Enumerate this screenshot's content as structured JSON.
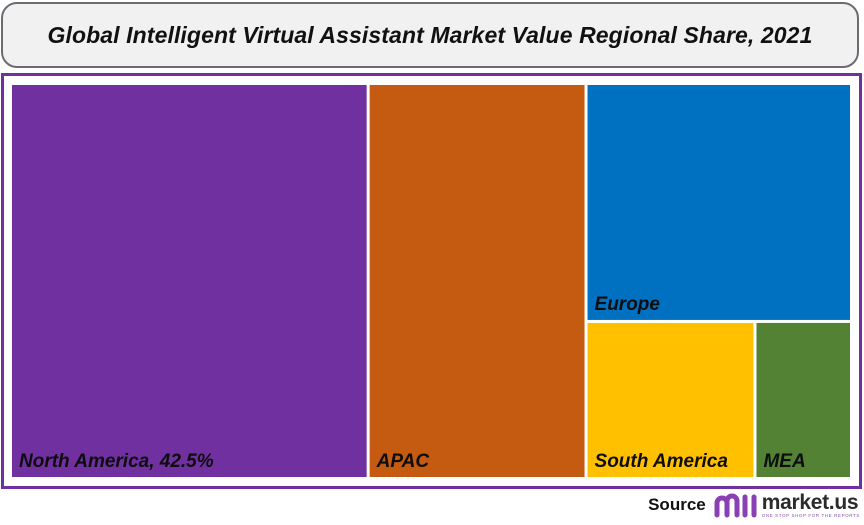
{
  "title": "Global Intelligent Virtual Assistant Market Value Regional Share, 2021",
  "chart_data": {
    "type": "treemap",
    "title": "Global Intelligent Virtual Assistant Market Value Regional Share, 2021",
    "tiles": [
      {
        "name": "North America",
        "label": "North America, 42.5%",
        "value": 42.5,
        "color": "#7030a0"
      },
      {
        "name": "APAC",
        "label": "APAC",
        "value": 26.0,
        "color": "#c55a11"
      },
      {
        "name": "Europe",
        "label": "Europe",
        "value": 19.0,
        "color": "#0070c0"
      },
      {
        "name": "South America",
        "label": "South America",
        "value": 8.0,
        "color": "#ffc000"
      },
      {
        "name": "MEA",
        "label": "MEA",
        "value": 4.5,
        "color": "#548235"
      }
    ]
  },
  "source": {
    "label": "Source",
    "brand_name": "market.us",
    "brand_tagline": "ONE STOP SHOP FOR THE REPORTS"
  },
  "colors": {
    "frame": "#7030a0",
    "title_background": "#f1f1f1",
    "title_border": "#6f6a72"
  }
}
